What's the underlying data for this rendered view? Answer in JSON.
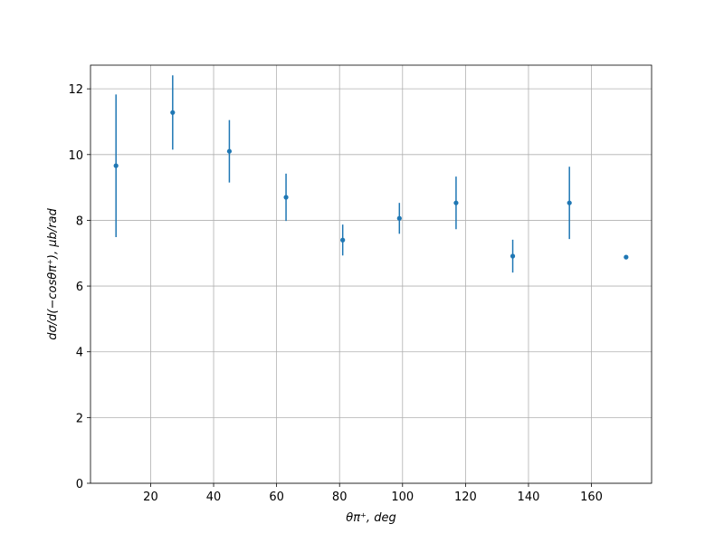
{
  "chart_data": {
    "type": "errorbar",
    "x_label": "θπ⁺, deg",
    "y_label": "dσ/d(−cosθπ⁺), μb/rad",
    "x": [
      9,
      27,
      45,
      63,
      81,
      99,
      117,
      135,
      153,
      171
    ],
    "values": [
      9.66,
      11.28,
      10.1,
      8.7,
      7.4,
      8.06,
      8.53,
      6.91,
      8.53,
      6.88
    ],
    "errors": [
      2.17,
      1.13,
      0.95,
      0.72,
      0.47,
      0.47,
      0.8,
      0.5,
      1.1,
      0.05
    ],
    "color": "#1f77b4",
    "xlim": [
      0.9,
      179.1
    ],
    "xticks": [
      20,
      40,
      60,
      80,
      100,
      120,
      140,
      160
    ],
    "ylim": [
      0,
      12.72
    ],
    "yticks": [
      0,
      2,
      4,
      6,
      8,
      10,
      12
    ],
    "grid": true
  }
}
